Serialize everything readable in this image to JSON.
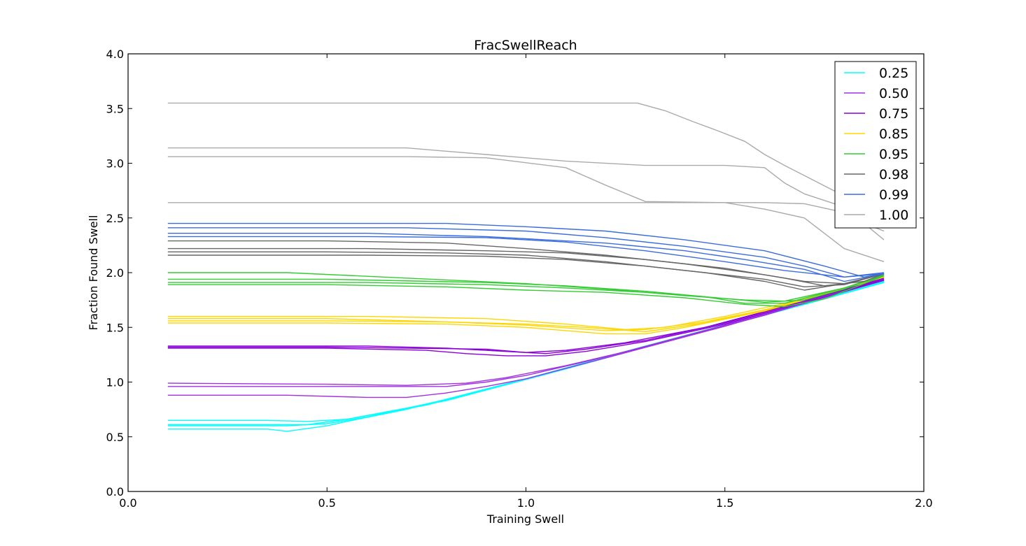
{
  "chart_data": {
    "type": "line",
    "title": "FracSwellReach",
    "xlabel": "Training Swell",
    "ylabel": "Fraction Found Swell",
    "xlim": [
      0.0,
      2.0
    ],
    "ylim": [
      0.0,
      4.0
    ],
    "xticks": [
      "0.0",
      "0.5",
      "1.0",
      "1.5",
      "2.0"
    ],
    "yticks": [
      "0.0",
      "0.5",
      "1.0",
      "1.5",
      "2.0",
      "2.5",
      "3.0",
      "3.5",
      "4.0"
    ],
    "grid": false,
    "legend_position": "top-right",
    "groups": [
      {
        "label": "0.25",
        "color": "#00FFFF",
        "series": [
          {
            "x": [
              0.1,
              0.35,
              0.4,
              0.5,
              0.55,
              0.7,
              1.0,
              1.3,
              1.6,
              1.9
            ],
            "y": [
              0.57,
              0.57,
              0.55,
              0.6,
              0.64,
              0.75,
              1.03,
              1.33,
              1.62,
              1.91
            ]
          },
          {
            "x": [
              0.1,
              0.3,
              0.4,
              0.5,
              0.6,
              0.8,
              1.1,
              1.4,
              1.7,
              1.9
            ],
            "y": [
              0.6,
              0.6,
              0.6,
              0.62,
              0.68,
              0.84,
              1.12,
              1.42,
              1.71,
              1.92
            ]
          },
          {
            "x": [
              0.1,
              0.35,
              0.45,
              0.55,
              0.75,
              1.05,
              1.35,
              1.65,
              1.9
            ],
            "y": [
              0.65,
              0.65,
              0.64,
              0.66,
              0.79,
              1.07,
              1.37,
              1.66,
              1.92
            ]
          },
          {
            "x": [
              0.1,
              0.3,
              0.45,
              0.55,
              0.8,
              1.1,
              1.4,
              1.7,
              1.9
            ],
            "y": [
              0.61,
              0.61,
              0.61,
              0.66,
              0.83,
              1.12,
              1.42,
              1.71,
              1.91
            ]
          }
        ]
      },
      {
        "label": "0.50",
        "color": "#A030E0",
        "series": [
          {
            "x": [
              0.1,
              0.4,
              0.6,
              0.7,
              0.8,
              0.9,
              1.0,
              1.2,
              1.5,
              1.9
            ],
            "y": [
              0.88,
              0.88,
              0.86,
              0.86,
              0.9,
              0.96,
              1.03,
              1.22,
              1.51,
              1.93
            ]
          },
          {
            "x": [
              0.1,
              0.4,
              0.6,
              0.8,
              0.9,
              1.0,
              1.2,
              1.5,
              1.9
            ],
            "y": [
              0.96,
              0.96,
              0.96,
              0.96,
              1.0,
              1.06,
              1.23,
              1.52,
              1.93
            ]
          },
          {
            "x": [
              0.1,
              0.5,
              0.7,
              0.85,
              0.95,
              1.1,
              1.3,
              1.6,
              1.9
            ],
            "y": [
              0.99,
              0.98,
              0.97,
              0.99,
              1.04,
              1.15,
              1.32,
              1.61,
              1.94
            ]
          }
        ]
      },
      {
        "label": "0.75",
        "color": "#8A00D8",
        "series": [
          {
            "x": [
              0.1,
              0.5,
              0.75,
              0.85,
              0.95,
              1.05,
              1.15,
              1.3,
              1.5,
              1.7,
              1.9
            ],
            "y": [
              1.31,
              1.31,
              1.29,
              1.26,
              1.24,
              1.24,
              1.28,
              1.37,
              1.53,
              1.73,
              1.93
            ]
          },
          {
            "x": [
              0.1,
              0.6,
              0.8,
              0.95,
              1.05,
              1.15,
              1.3,
              1.5,
              1.7,
              1.9
            ],
            "y": [
              1.33,
              1.33,
              1.31,
              1.28,
              1.26,
              1.3,
              1.38,
              1.54,
              1.74,
              1.94
            ]
          },
          {
            "x": [
              0.1,
              0.5,
              0.7,
              0.9,
              1.0,
              1.1,
              1.25,
              1.45,
              1.7,
              1.9
            ],
            "y": [
              1.32,
              1.32,
              1.31,
              1.3,
              1.27,
              1.29,
              1.36,
              1.5,
              1.74,
              1.95
            ]
          }
        ]
      },
      {
        "label": "0.85",
        "color": "#FFD700",
        "series": [
          {
            "x": [
              0.1,
              0.5,
              0.8,
              1.0,
              1.2,
              1.3,
              1.4,
              1.6,
              1.9
            ],
            "y": [
              1.54,
              1.54,
              1.53,
              1.5,
              1.44,
              1.44,
              1.5,
              1.65,
              1.96
            ]
          },
          {
            "x": [
              0.1,
              0.5,
              0.8,
              1.0,
              1.2,
              1.3,
              1.45,
              1.6,
              1.9
            ],
            "y": [
              1.58,
              1.58,
              1.55,
              1.52,
              1.47,
              1.48,
              1.55,
              1.66,
              1.96
            ]
          },
          {
            "x": [
              0.1,
              0.6,
              0.9,
              1.1,
              1.25,
              1.35,
              1.5,
              1.7,
              1.9
            ],
            "y": [
              1.6,
              1.6,
              1.58,
              1.53,
              1.48,
              1.5,
              1.6,
              1.76,
              1.96
            ]
          },
          {
            "x": [
              0.1,
              0.5,
              0.8,
              1.0,
              1.15,
              1.3,
              1.45,
              1.65,
              1.9
            ],
            "y": [
              1.56,
              1.56,
              1.55,
              1.53,
              1.5,
              1.46,
              1.54,
              1.7,
              1.96
            ]
          }
        ]
      },
      {
        "label": "0.95",
        "color": "#33CC33",
        "series": [
          {
            "x": [
              0.1,
              0.5,
              0.8,
              1.0,
              1.2,
              1.4,
              1.55,
              1.65,
              1.75,
              1.9
            ],
            "y": [
              1.89,
              1.89,
              1.87,
              1.84,
              1.82,
              1.77,
              1.71,
              1.69,
              1.76,
              1.97
            ]
          },
          {
            "x": [
              0.1,
              0.6,
              0.9,
              1.1,
              1.3,
              1.45,
              1.55,
              1.65,
              1.8,
              1.9
            ],
            "y": [
              1.91,
              1.91,
              1.89,
              1.86,
              1.82,
              1.78,
              1.72,
              1.72,
              1.86,
              1.97
            ]
          },
          {
            "x": [
              0.1,
              0.5,
              0.9,
              1.1,
              1.3,
              1.45,
              1.6,
              1.7,
              1.8,
              1.9
            ],
            "y": [
              1.94,
              1.94,
              1.91,
              1.88,
              1.83,
              1.78,
              1.73,
              1.75,
              1.85,
              1.98
            ]
          },
          {
            "x": [
              0.1,
              0.4,
              0.7,
              1.0,
              1.2,
              1.4,
              1.55,
              1.65,
              1.8,
              1.9
            ],
            "y": [
              2.0,
              2.0,
              1.95,
              1.9,
              1.85,
              1.79,
              1.75,
              1.74,
              1.86,
              1.98
            ]
          }
        ]
      },
      {
        "label": "0.98",
        "color": "#666666",
        "series": [
          {
            "x": [
              0.1,
              0.6,
              0.9,
              1.1,
              1.3,
              1.45,
              1.6,
              1.7,
              1.8,
              1.9
            ],
            "y": [
              2.16,
              2.16,
              2.15,
              2.12,
              2.06,
              2.0,
              1.92,
              1.84,
              1.9,
              1.99
            ]
          },
          {
            "x": [
              0.1,
              0.5,
              0.8,
              1.0,
              1.2,
              1.4,
              1.6,
              1.7,
              1.8,
              1.9
            ],
            "y": [
              2.19,
              2.19,
              2.18,
              2.16,
              2.1,
              2.02,
              1.94,
              1.87,
              1.89,
              1.99
            ]
          },
          {
            "x": [
              0.1,
              0.6,
              0.9,
              1.1,
              1.3,
              1.5,
              1.65,
              1.75,
              1.85,
              1.9
            ],
            "y": [
              2.22,
              2.22,
              2.2,
              2.18,
              2.12,
              2.04,
              1.95,
              1.88,
              1.92,
              1.99
            ]
          },
          {
            "x": [
              0.1,
              0.5,
              0.8,
              1.0,
              1.2,
              1.4,
              1.6,
              1.7,
              1.8,
              1.9
            ],
            "y": [
              2.29,
              2.29,
              2.27,
              2.22,
              2.16,
              2.08,
              1.98,
              1.92,
              1.9,
              1.99
            ]
          }
        ]
      },
      {
        "label": "0.99",
        "color": "#3A6CDD",
        "series": [
          {
            "x": [
              0.1,
              0.6,
              0.9,
              1.1,
              1.3,
              1.5,
              1.65,
              1.8,
              1.9
            ],
            "y": [
              2.33,
              2.33,
              2.32,
              2.28,
              2.2,
              2.1,
              2.02,
              1.96,
              2.0
            ]
          },
          {
            "x": [
              0.1,
              0.6,
              0.9,
              1.2,
              1.4,
              1.55,
              1.7,
              1.8,
              1.9
            ],
            "y": [
              2.36,
              2.36,
              2.33,
              2.27,
              2.2,
              2.12,
              2.03,
              1.92,
              1.99
            ]
          },
          {
            "x": [
              0.1,
              0.7,
              1.0,
              1.2,
              1.4,
              1.6,
              1.7,
              1.8,
              1.9
            ],
            "y": [
              2.41,
              2.41,
              2.38,
              2.32,
              2.24,
              2.14,
              2.06,
              1.96,
              1.99
            ]
          },
          {
            "x": [
              0.1,
              0.8,
              1.0,
              1.2,
              1.4,
              1.6,
              1.75,
              1.85,
              1.9
            ],
            "y": [
              2.45,
              2.45,
              2.42,
              2.38,
              2.3,
              2.2,
              2.06,
              1.96,
              1.99
            ]
          }
        ]
      },
      {
        "label": "1.00",
        "color": "#AAAAAA",
        "series": [
          {
            "x": [
              0.1,
              1.3,
              1.5,
              1.6,
              1.7,
              1.8,
              1.85,
              1.9
            ],
            "y": [
              2.64,
              2.64,
              2.64,
              2.64,
              2.63,
              2.55,
              2.45,
              2.38
            ]
          },
          {
            "x": [
              0.1,
              0.7,
              0.9,
              1.1,
              1.2,
              1.3,
              1.5,
              1.6,
              1.7,
              1.8,
              1.9
            ],
            "y": [
              3.06,
              3.06,
              3.05,
              2.96,
              2.8,
              2.65,
              2.64,
              2.58,
              2.5,
              2.22,
              2.1
            ]
          },
          {
            "x": [
              0.1,
              0.7,
              0.9,
              1.1,
              1.3,
              1.5,
              1.6,
              1.65,
              1.7,
              1.8,
              1.9
            ],
            "y": [
              3.14,
              3.14,
              3.08,
              3.02,
              2.98,
              2.98,
              2.96,
              2.82,
              2.72,
              2.6,
              2.3
            ]
          },
          {
            "x": [
              0.1,
              1.28,
              1.35,
              1.42,
              1.48,
              1.55,
              1.6,
              1.65,
              1.72,
              1.8,
              1.9
            ],
            "y": [
              3.55,
              3.55,
              3.48,
              3.38,
              3.3,
              3.2,
              3.08,
              2.98,
              2.85,
              2.7,
              2.6
            ]
          }
        ]
      }
    ]
  }
}
